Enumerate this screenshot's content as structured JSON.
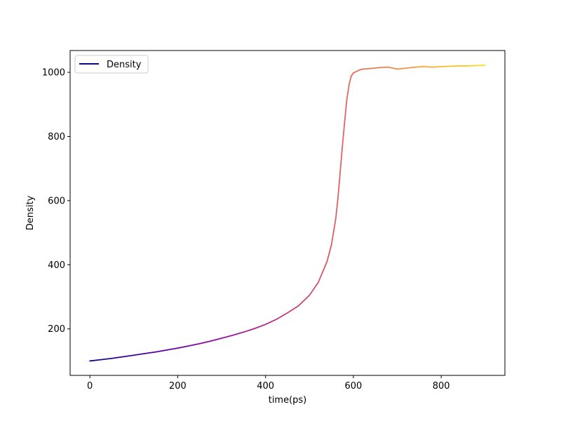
{
  "chart_data": {
    "type": "line",
    "title": "",
    "xlabel": "time(ps)",
    "ylabel": "Density",
    "xlim": [
      -45,
      945
    ],
    "ylim": [
      55,
      1068
    ],
    "xticks": [
      0,
      200,
      400,
      600,
      800
    ],
    "yticks": [
      200,
      400,
      600,
      800,
      1000
    ],
    "xtick_labels": [
      "0",
      "200",
      "400",
      "600",
      "800"
    ],
    "ytick_labels": [
      "200",
      "400",
      "600",
      "800",
      "1000"
    ],
    "grid": false,
    "legend": {
      "position": "top-left",
      "entries": [
        {
          "label": "Density",
          "color": "#0d0887"
        }
      ]
    },
    "colormap": "plasma",
    "series": [
      {
        "name": "Density",
        "x": [
          0,
          25,
          50,
          75,
          100,
          125,
          150,
          175,
          200,
          225,
          250,
          275,
          300,
          325,
          350,
          375,
          400,
          425,
          450,
          475,
          500,
          520,
          540,
          550,
          560,
          565,
          570,
          575,
          580,
          585,
          590,
          595,
          600,
          610,
          620,
          640,
          660,
          680,
          700,
          720,
          740,
          760,
          780,
          800,
          820,
          840,
          860,
          880,
          900
        ],
        "y": [
          100,
          104,
          108,
          113,
          118,
          123,
          128,
          134,
          140,
          147,
          154,
          162,
          171,
          180,
          190,
          201,
          214,
          230,
          250,
          272,
          305,
          345,
          410,
          462,
          545,
          610,
          690,
          770,
          845,
          915,
          960,
          988,
          998,
          1005,
          1010,
          1012,
          1015,
          1016,
          1010,
          1013,
          1016,
          1018,
          1016,
          1018,
          1019,
          1020,
          1020,
          1021,
          1022
        ]
      }
    ]
  }
}
